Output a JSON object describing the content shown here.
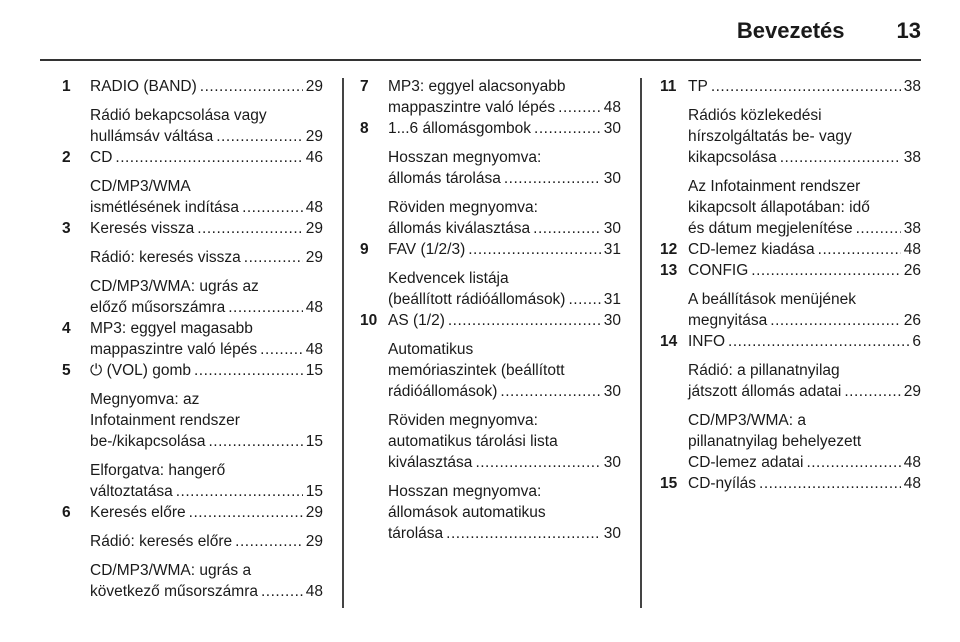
{
  "header": {
    "section": "Bevezetés",
    "page": "13"
  },
  "columns": [
    [
      {
        "num": "1",
        "title": "RADIO (BAND)",
        "page": "29",
        "subs": [
          {
            "lines": [
              "Rádió bekapcsolása vagy",
              "hullámsáv váltása"
            ],
            "page": "29"
          }
        ]
      },
      {
        "num": "2",
        "title": "CD",
        "page": "46",
        "subs": [
          {
            "lines": [
              "CD/MP3/WMA",
              "ismétlésének indítása"
            ],
            "page": "48"
          }
        ]
      },
      {
        "num": "3",
        "title": "Keresés vissza",
        "page": "29",
        "subs": [
          {
            "lines": [
              "Rádió: keresés vissza"
            ],
            "page": "29"
          },
          {
            "lines": [
              "CD/MP3/WMA: ugrás az",
              "előző műsorszámra"
            ],
            "page": "48"
          }
        ]
      },
      {
        "num": "4",
        "title": "MP3: eggyel magasabb",
        "title2": "mappaszintre való lépés",
        "page": "48",
        "subs": []
      },
      {
        "num": "5",
        "title": "⏻ (VOL) gomb",
        "page": "15",
        "subs": [
          {
            "lines": [
              "Megnyomva: az",
              "Infotainment rendszer",
              "be-/kikapcsolása"
            ],
            "page": "15"
          },
          {
            "lines": [
              "Elforgatva: hangerő",
              "változtatása"
            ],
            "page": "15"
          }
        ]
      },
      {
        "num": "6",
        "title": "Keresés előre",
        "page": "29",
        "subs": [
          {
            "lines": [
              "Rádió: keresés előre"
            ],
            "page": "29"
          },
          {
            "lines": [
              "CD/MP3/WMA: ugrás a",
              "következő műsorszámra"
            ],
            "page": "48"
          }
        ]
      }
    ],
    [
      {
        "num": "7",
        "title": "MP3: eggyel alacsonyabb",
        "title2": "mappaszintre való lépés",
        "page": "48",
        "subs": []
      },
      {
        "num": "8",
        "title": "1...6 állomásgombok",
        "page": "30",
        "subs": [
          {
            "lines": [
              "Hosszan megnyomva:",
              "állomás tárolása"
            ],
            "page": "30"
          },
          {
            "lines": [
              "Röviden megnyomva:",
              "állomás kiválasztása"
            ],
            "page": "30"
          }
        ]
      },
      {
        "num": "9",
        "title": "FAV (1/2/3)",
        "page": "31",
        "subs": [
          {
            "lines": [
              "Kedvencek listája",
              "(beállított rádióállomások)"
            ],
            "page": "31"
          }
        ]
      },
      {
        "num": "10",
        "title": "AS (1/2)",
        "page": "30",
        "subs": [
          {
            "lines": [
              "Automatikus",
              "memóriaszintek (beállított",
              "rádióállomások)"
            ],
            "page": "30"
          },
          {
            "lines": [
              "Röviden megnyomva:",
              "automatikus tárolási lista",
              "kiválasztása"
            ],
            "page": "30"
          },
          {
            "lines": [
              "Hosszan megnyomva:",
              "állomások automatikus",
              "tárolása"
            ],
            "page": "30"
          }
        ]
      }
    ],
    [
      {
        "num": "11",
        "title": "TP",
        "page": "38",
        "subs": [
          {
            "lines": [
              "Rádiós közlekedési",
              "hírszolgáltatás be- vagy",
              "kikapcsolása"
            ],
            "page": "38"
          },
          {
            "lines": [
              "Az Infotainment rendszer",
              "kikapcsolt állapotában: idő",
              "és dátum megjelenítése"
            ],
            "page": "38"
          }
        ]
      },
      {
        "num": "12",
        "title": "CD-lemez kiadása",
        "page": "48",
        "subs": []
      },
      {
        "num": "13",
        "title": "CONFIG",
        "page": "26",
        "subs": [
          {
            "lines": [
              "A beállítások menüjének",
              "megnyitása"
            ],
            "page": "26"
          }
        ]
      },
      {
        "num": "14",
        "title": "INFO",
        "page": "6",
        "subs": [
          {
            "lines": [
              "Rádió: a pillanatnyilag",
              "játszott állomás adatai"
            ],
            "page": "29"
          },
          {
            "lines": [
              "CD/MP3/WMA: a",
              "pillanatnyilag behelyezett",
              "CD-lemez adatai"
            ],
            "page": "48"
          }
        ]
      },
      {
        "num": "15",
        "title": "CD-nyílás",
        "page": "48",
        "subs": []
      }
    ]
  ]
}
